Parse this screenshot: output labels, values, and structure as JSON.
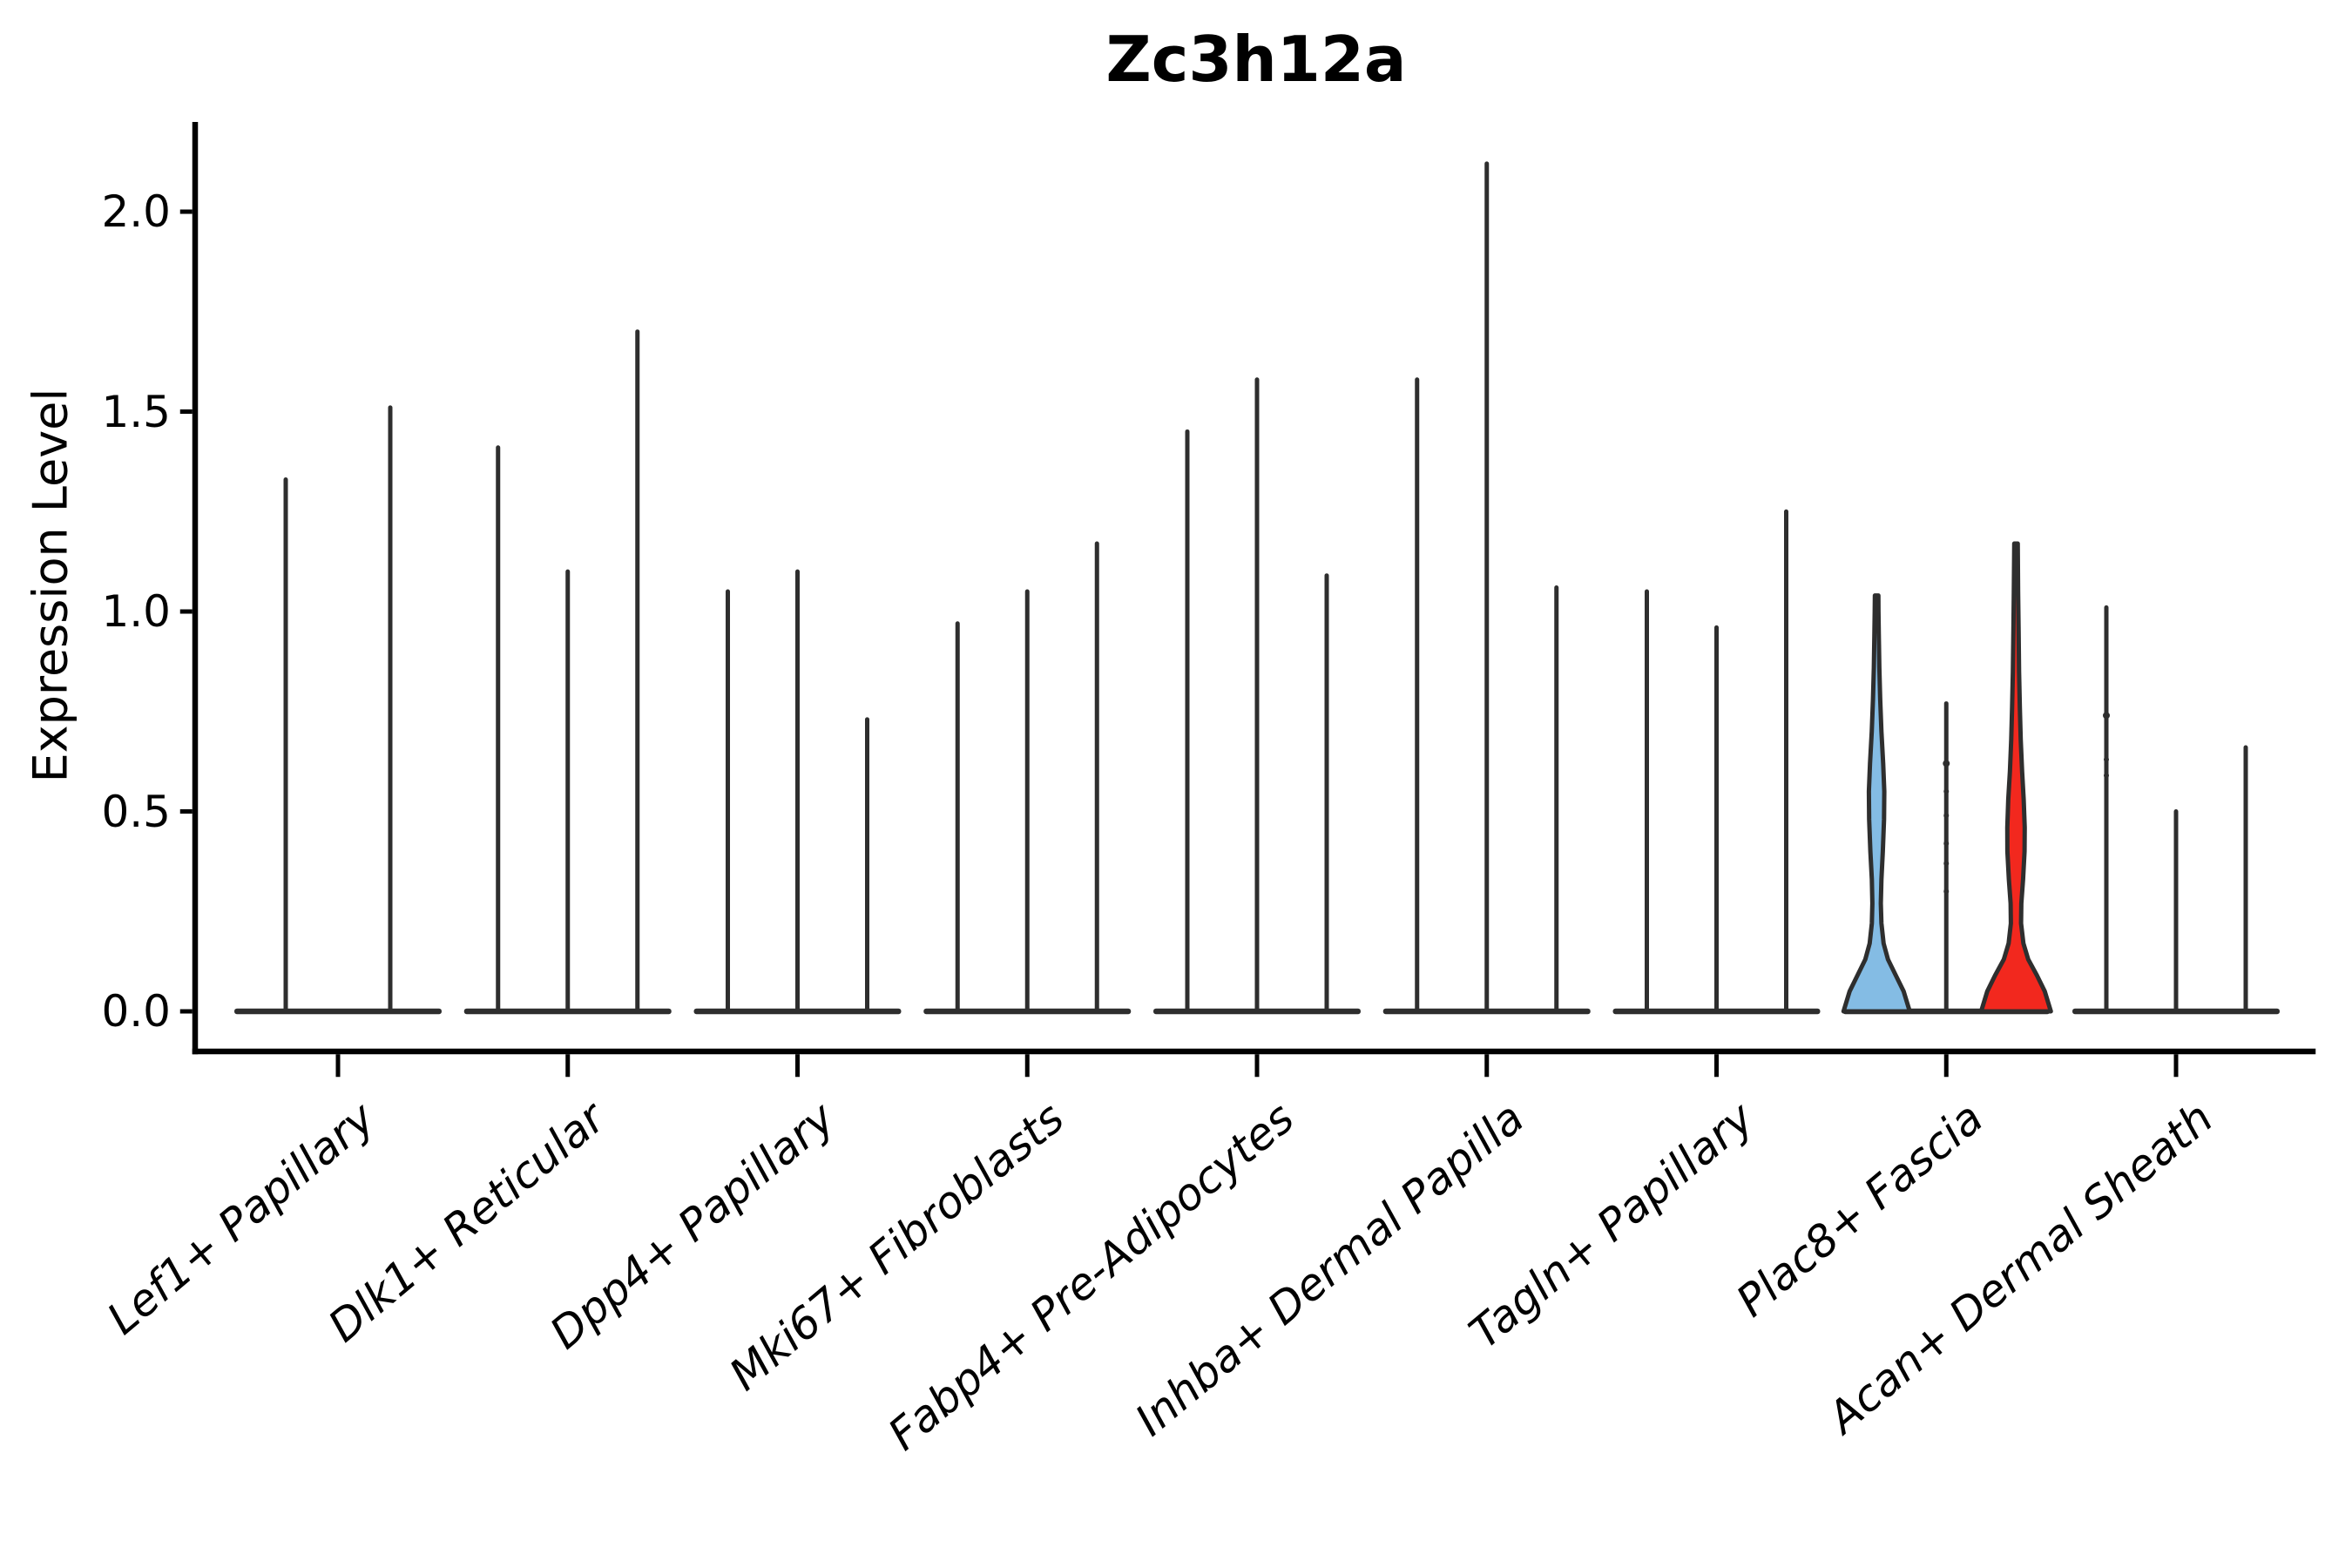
{
  "figure": {
    "background": "#ffffff"
  },
  "chart_data": {
    "type": "violin",
    "title": "Zc3h12a",
    "xlabel": "",
    "ylabel": "Expression Level",
    "ylim": [
      0,
      2.22
    ],
    "yticks": [
      0.0,
      0.5,
      1.0,
      1.5,
      2.0
    ],
    "ytick_labels": [
      "0.0",
      "0.5",
      "1.0",
      "1.5",
      "2.0"
    ],
    "grid": false,
    "legend": "none",
    "colors": {
      "highlight_blue": "#84BCE4",
      "highlight_red": "#F2281E",
      "violin_line": "#2E2E2E",
      "axis": "#000000"
    },
    "categories": [
      {
        "label": "Lef1+ Papillary",
        "violins": [
          {
            "max": 1.33
          },
          {
            "max": 1.51
          }
        ]
      },
      {
        "label": "Dlk1+ Reticular",
        "violins": [
          {
            "max": 1.41
          },
          {
            "max": 1.1
          },
          {
            "max": 1.7
          }
        ]
      },
      {
        "label": "Dpp4+ Papillary",
        "violins": [
          {
            "max": 1.05
          },
          {
            "max": 1.1
          },
          {
            "max": 0.73
          }
        ]
      },
      {
        "label": "Mki67+ Fibroblasts",
        "violins": [
          {
            "max": 0.97
          },
          {
            "max": 1.05
          },
          {
            "max": 1.17
          }
        ]
      },
      {
        "label": "Fabp4+ Pre-Adipocytes",
        "violins": [
          {
            "max": 1.45
          },
          {
            "max": 1.58
          },
          {
            "max": 1.09
          }
        ]
      },
      {
        "label": "Inhba+ Dermal Papilla",
        "violins": [
          {
            "max": 1.58
          },
          {
            "max": 2.12
          },
          {
            "max": 1.06
          }
        ]
      },
      {
        "label": "Tagln+ Papillary",
        "violins": [
          {
            "max": 1.05
          },
          {
            "max": 0.96
          },
          {
            "max": 1.25
          }
        ]
      },
      {
        "label": "Plac8+ Fascia",
        "violins": [
          {
            "max": 1.04,
            "fill": "#84BCE4",
            "profile": [
              [
                0,
                38
              ],
              [
                0.05,
                31
              ],
              [
                0.09,
                22
              ],
              [
                0.13,
                13
              ],
              [
                0.17,
                8
              ],
              [
                0.22,
                5.5
              ],
              [
                0.27,
                4.8
              ],
              [
                0.33,
                5.5
              ],
              [
                0.4,
                7.2
              ],
              [
                0.48,
                8.6
              ],
              [
                0.55,
                8.8
              ],
              [
                0.62,
                7.6
              ],
              [
                0.7,
                5.6
              ],
              [
                0.78,
                4.2
              ],
              [
                0.86,
                3.2
              ],
              [
                0.94,
                2.6
              ],
              [
                1.0,
                2.2
              ],
              [
                1.04,
                2.0
              ]
            ]
          },
          {
            "max": 0.77,
            "dots": [
              0.62,
              0.55,
              0.49,
              0.42,
              0.37,
              0.3
            ]
          },
          {
            "max": 1.17,
            "fill": "#F2281E",
            "profile": [
              [
                0,
                40
              ],
              [
                0.05,
                33
              ],
              [
                0.09,
                24
              ],
              [
                0.13,
                14
              ],
              [
                0.17,
                8.5
              ],
              [
                0.22,
                5.8
              ],
              [
                0.27,
                6.2
              ],
              [
                0.33,
                8.2
              ],
              [
                0.4,
                9.8
              ],
              [
                0.46,
                10
              ],
              [
                0.53,
                8.8
              ],
              [
                0.6,
                7.0
              ],
              [
                0.68,
                5.4
              ],
              [
                0.76,
                4.4
              ],
              [
                0.85,
                3.6
              ],
              [
                0.95,
                3.0
              ],
              [
                1.05,
                2.4
              ],
              [
                1.17,
                2.0
              ]
            ]
          }
        ]
      },
      {
        "label": "Acan+ Dermal Sheath",
        "violins": [
          {
            "max": 1.01,
            "dots": [
              0.74,
              0.63,
              0.59
            ]
          },
          {
            "max": 0.5
          },
          {
            "max": 0.66
          }
        ]
      }
    ]
  }
}
